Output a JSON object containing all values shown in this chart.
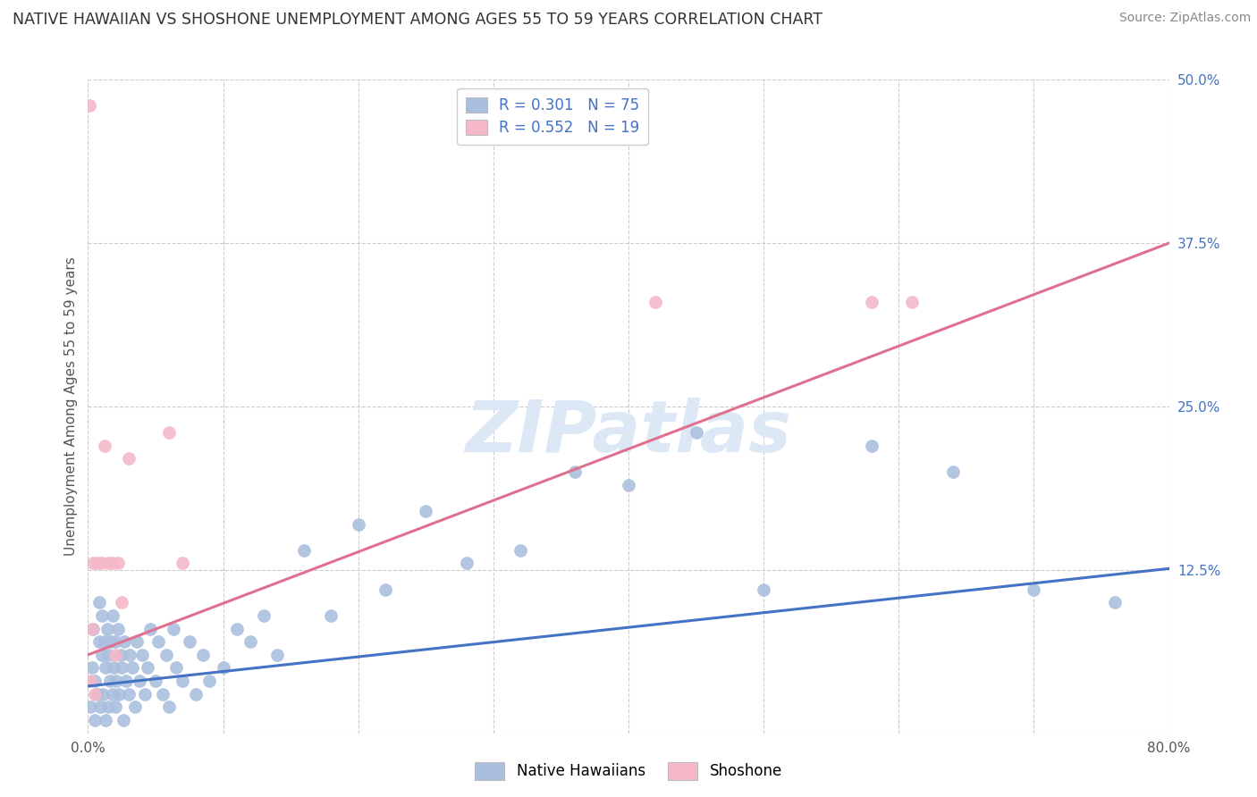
{
  "title": "NATIVE HAWAIIAN VS SHOSHONE UNEMPLOYMENT AMONG AGES 55 TO 59 YEARS CORRELATION CHART",
  "source": "Source: ZipAtlas.com",
  "ylabel": "Unemployment Among Ages 55 to 59 years",
  "watermark": "ZIPatlas",
  "blue_R": 0.301,
  "blue_N": 75,
  "pink_R": 0.552,
  "pink_N": 19,
  "blue_label": "Native Hawaiians",
  "pink_label": "Shoshone",
  "xlim": [
    0.0,
    0.8
  ],
  "ylim": [
    0.0,
    0.5
  ],
  "yticks_right": [
    0.0,
    0.125,
    0.25,
    0.375,
    0.5
  ],
  "yticklabels_right": [
    "",
    "12.5%",
    "25.0%",
    "37.5%",
    "50.0%"
  ],
  "blue_color": "#aabfde",
  "blue_line_color": "#4472c4",
  "pink_color": "#f4b8c8",
  "pink_line_color": "#e07090",
  "background_color": "#ffffff",
  "grid_color": "#cccccc",
  "title_color": "#333333",
  "source_color": "#888888",
  "watermark_color": "#dce8f5",
  "blue_scatter_x": [
    0.002,
    0.003,
    0.004,
    0.005,
    0.005,
    0.007,
    0.008,
    0.008,
    0.009,
    0.01,
    0.01,
    0.011,
    0.012,
    0.013,
    0.013,
    0.014,
    0.015,
    0.015,
    0.016,
    0.017,
    0.018,
    0.018,
    0.019,
    0.02,
    0.02,
    0.021,
    0.022,
    0.023,
    0.024,
    0.025,
    0.026,
    0.027,
    0.028,
    0.03,
    0.031,
    0.033,
    0.035,
    0.036,
    0.038,
    0.04,
    0.042,
    0.044,
    0.046,
    0.05,
    0.052,
    0.055,
    0.058,
    0.06,
    0.063,
    0.065,
    0.07,
    0.075,
    0.08,
    0.085,
    0.09,
    0.1,
    0.11,
    0.12,
    0.13,
    0.14,
    0.16,
    0.18,
    0.2,
    0.22,
    0.25,
    0.28,
    0.32,
    0.36,
    0.4,
    0.45,
    0.5,
    0.58,
    0.64,
    0.7,
    0.76
  ],
  "blue_scatter_y": [
    0.02,
    0.05,
    0.08,
    0.01,
    0.04,
    0.03,
    0.07,
    0.1,
    0.02,
    0.06,
    0.09,
    0.03,
    0.07,
    0.01,
    0.05,
    0.08,
    0.02,
    0.06,
    0.04,
    0.07,
    0.03,
    0.09,
    0.05,
    0.02,
    0.07,
    0.04,
    0.08,
    0.03,
    0.06,
    0.05,
    0.01,
    0.07,
    0.04,
    0.03,
    0.06,
    0.05,
    0.02,
    0.07,
    0.04,
    0.06,
    0.03,
    0.05,
    0.08,
    0.04,
    0.07,
    0.03,
    0.06,
    0.02,
    0.08,
    0.05,
    0.04,
    0.07,
    0.03,
    0.06,
    0.04,
    0.05,
    0.08,
    0.07,
    0.09,
    0.06,
    0.14,
    0.09,
    0.16,
    0.11,
    0.17,
    0.13,
    0.14,
    0.2,
    0.19,
    0.23,
    0.11,
    0.22,
    0.2,
    0.11,
    0.1
  ],
  "pink_scatter_x": [
    0.001,
    0.002,
    0.003,
    0.004,
    0.005,
    0.007,
    0.01,
    0.012,
    0.015,
    0.018,
    0.02,
    0.022,
    0.025,
    0.03,
    0.06,
    0.07,
    0.42,
    0.58,
    0.61
  ],
  "pink_scatter_y": [
    0.48,
    0.04,
    0.08,
    0.13,
    0.03,
    0.13,
    0.13,
    0.22,
    0.13,
    0.13,
    0.06,
    0.13,
    0.1,
    0.21,
    0.23,
    0.13,
    0.33,
    0.33,
    0.33
  ],
  "blue_line_x": [
    0.0,
    0.8
  ],
  "blue_line_y": [
    0.036,
    0.126
  ],
  "pink_line_x": [
    0.0,
    0.8
  ],
  "pink_line_y": [
    0.06,
    0.375
  ]
}
